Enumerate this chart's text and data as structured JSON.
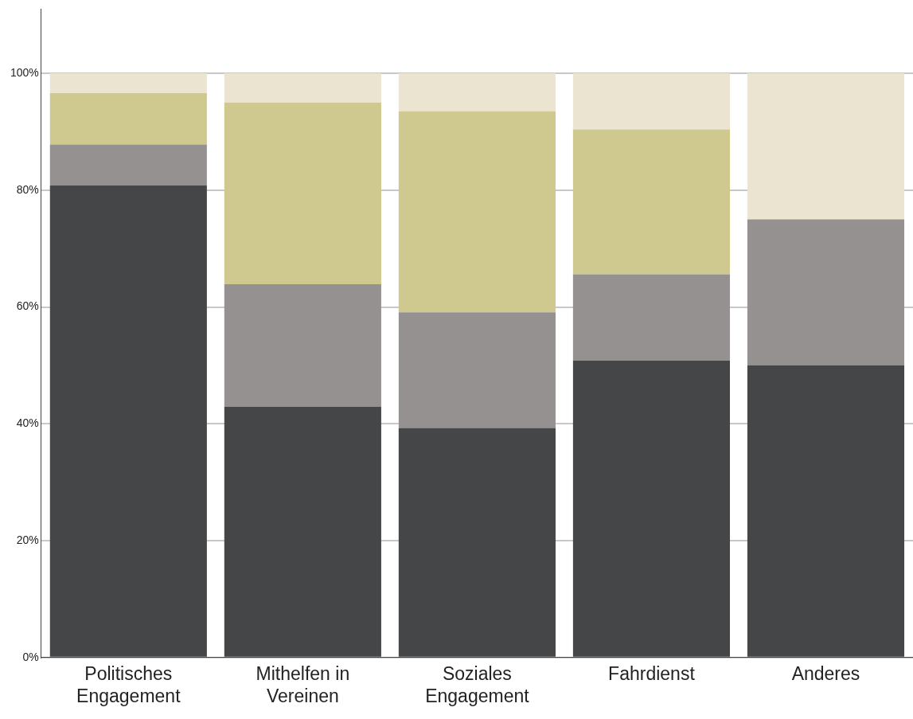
{
  "chart_data": {
    "type": "bar",
    "stacked": true,
    "categories": [
      "Politisches\nEngagement",
      "Mithelfen in\nVereinen",
      "Soziales\nEngagement",
      "Fahrdienst",
      "Anderes"
    ],
    "series": [
      {
        "color": "#454648",
        "values": [
          80.8,
          42.9,
          39.3,
          50.8,
          50.0
        ]
      },
      {
        "color": "#949190",
        "values": [
          7.0,
          21.0,
          19.8,
          14.8,
          25.0
        ]
      },
      {
        "color": "#cfc88f",
        "values": [
          8.8,
          31.1,
          34.4,
          24.8,
          0
        ]
      },
      {
        "color": "#ebe4d0",
        "values": [
          3.4,
          5.0,
          6.5,
          9.6,
          25.0
        ]
      }
    ],
    "ylim": [
      0,
      111
    ],
    "yticks": [
      {
        "value": 0,
        "label": "0%"
      },
      {
        "value": 20,
        "label": "20%"
      },
      {
        "value": 40,
        "label": "40%"
      },
      {
        "value": 60,
        "label": "60%"
      },
      {
        "value": 80,
        "label": "80%"
      },
      {
        "value": 100,
        "label": "100%"
      }
    ],
    "grid": "y",
    "legend": false
  }
}
